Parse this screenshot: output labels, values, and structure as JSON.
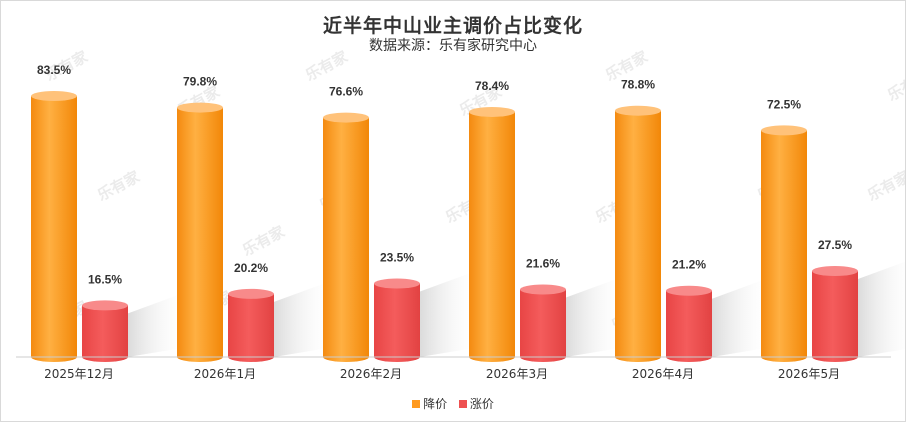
{
  "title": "近半年中山业主调价占比变化",
  "subtitle": "数据来源：乐有家研究中心",
  "watermark": "乐有家",
  "colors": {
    "decrease": "#ff9a1f",
    "increase": "#ee5050",
    "axis": "#cccccc",
    "label": "#333333"
  },
  "chart_data": {
    "type": "bar",
    "categories": [
      "2025年12月",
      "2026年1月",
      "2026年2月",
      "2026年3月",
      "2026年4月",
      "2026年5月"
    ],
    "series": [
      {
        "name": "降价",
        "values": [
          83.5,
          79.8,
          76.6,
          78.4,
          78.8,
          72.5
        ],
        "labels": [
          "83.5%",
          "79.8%",
          "76.6%",
          "78.4%",
          "78.8%",
          "72.5%"
        ]
      },
      {
        "name": "涨价",
        "values": [
          16.5,
          20.2,
          23.5,
          21.6,
          21.2,
          27.5
        ],
        "labels": [
          "16.5%",
          "20.2%",
          "23.5%",
          "21.6%",
          "21.2%",
          "27.5%"
        ]
      }
    ],
    "unit": "%",
    "ylim": [
      0,
      100
    ],
    "grid": false,
    "legend": "bottom-center"
  }
}
